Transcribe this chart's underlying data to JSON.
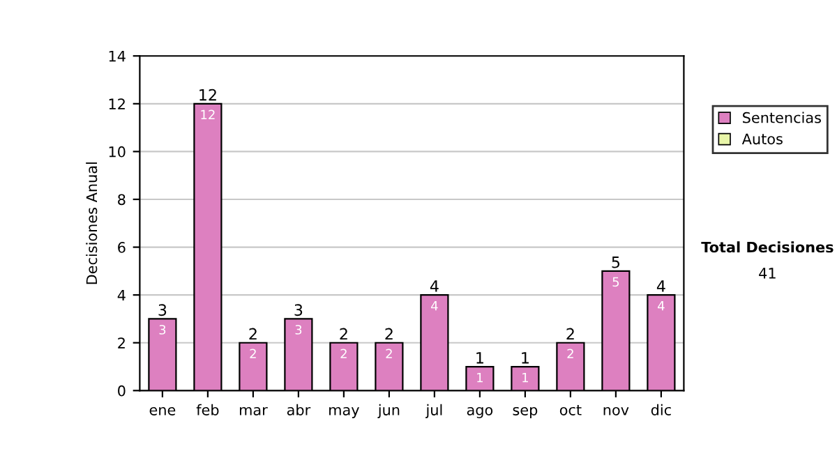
{
  "chart_data": {
    "type": "bar",
    "ylabel": "Decisiones Anual",
    "categories": [
      "ene",
      "feb",
      "mar",
      "abr",
      "may",
      "jun",
      "jul",
      "ago",
      "sep",
      "oct",
      "nov",
      "dic"
    ],
    "series": [
      {
        "name": "Sentencias",
        "color": "#dd80c0",
        "values": [
          3,
          12,
          2,
          3,
          2,
          2,
          4,
          1,
          1,
          2,
          5,
          4
        ],
        "value_labels": [
          "3",
          "12",
          "2",
          "3",
          "2",
          "2",
          "4",
          "1",
          "1",
          "2",
          "5",
          "4"
        ]
      },
      {
        "name": "Autos",
        "color": "#e8f5a8",
        "values": [
          0,
          0,
          0,
          0,
          0,
          0,
          0,
          0,
          0,
          0,
          0,
          0
        ]
      }
    ],
    "stacked": true,
    "totals": [
      "3",
      "12",
      "2",
      "3",
      "2",
      "2",
      "4",
      "1",
      "1",
      "2",
      "5",
      "4"
    ],
    "ylim": [
      0,
      14
    ],
    "yticks": [
      0,
      2,
      4,
      6,
      8,
      10,
      12,
      14
    ],
    "grid": "y",
    "legend": "right",
    "annotations": [
      "Total Decisiones",
      "41"
    ]
  }
}
